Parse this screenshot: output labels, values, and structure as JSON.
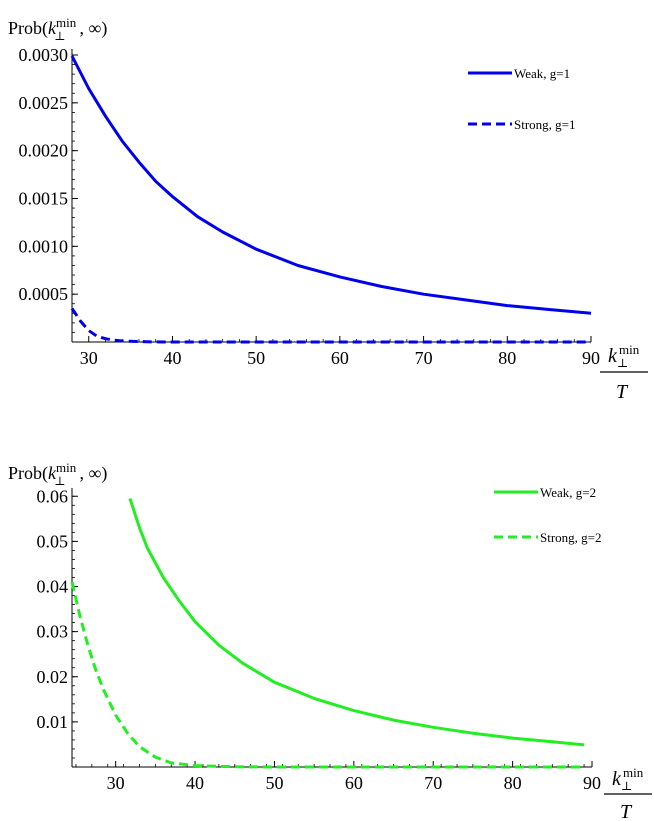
{
  "chart_data": [
    {
      "type": "line",
      "ylabel": {
        "prefix": "Prob(",
        "var": "k",
        "sub": "⊥",
        "sup": "min",
        "suffix": ", ∞)"
      },
      "xlabel": {
        "var": "k",
        "sub": "⊥",
        "sup": "min",
        "den": "T"
      },
      "xlim": [
        28,
        90
      ],
      "ylim": [
        0,
        0.003
      ],
      "x_ticks": [
        30,
        40,
        50,
        60,
        70,
        80,
        90
      ],
      "y_ticks": [
        0.0005,
        0.001,
        0.0015,
        0.002,
        0.0025,
        0.003
      ],
      "y_tick_labels": [
        "0.0005",
        "0.0010",
        "0.0015",
        "0.0020",
        "0.0025",
        "0.0030"
      ],
      "legend_position": "top-right",
      "series": [
        {
          "name": "Weak, g=1",
          "color": "#0000ee",
          "style": "solid",
          "x": [
            28,
            30,
            32,
            34,
            36,
            38,
            40,
            43,
            46,
            50,
            55,
            60,
            65,
            70,
            75,
            80,
            85,
            90
          ],
          "y": [
            0.00299,
            0.00265,
            0.00236,
            0.0021,
            0.00188,
            0.00168,
            0.00152,
            0.00131,
            0.00115,
            0.00097,
            0.0008,
            0.00068,
            0.00058,
            0.0005,
            0.00044,
            0.00038,
            0.00034,
            0.0003
          ]
        },
        {
          "name": "Strong, g=1",
          "color": "#0000ee",
          "style": "dashed",
          "x": [
            28,
            29,
            30,
            31,
            32,
            33,
            34,
            36,
            38,
            40,
            50,
            60,
            70,
            80,
            90
          ],
          "y": [
            0.00035,
            0.00022,
            0.00012,
            6e-05,
            3.5e-05,
            2e-05,
            1e-05,
            4e-06,
            1e-06,
            5e-07,
            1e-07,
            5e-08,
            2e-08,
            1e-08,
            1e-08
          ]
        }
      ]
    },
    {
      "type": "line",
      "ylabel": {
        "prefix": "Prob(",
        "var": "k",
        "sub": "⊥",
        "sup": "min",
        "suffix": ", ∞)"
      },
      "xlabel": {
        "var": "k",
        "sub": "⊥",
        "sup": "min",
        "den": "T"
      },
      "xlim": [
        24.5,
        90
      ],
      "ylim": [
        0,
        0.0605
      ],
      "x_ticks": [
        30,
        40,
        50,
        60,
        70,
        80,
        90
      ],
      "y_ticks": [
        0.01,
        0.02,
        0.03,
        0.04,
        0.05,
        0.06
      ],
      "y_tick_labels": [
        "0.01",
        "0.02",
        "0.03",
        "0.04",
        "0.05",
        "0.06"
      ],
      "legend_position": "top-right",
      "series": [
        {
          "name": "Weak, g=2",
          "color": "#22ee22",
          "style": "solid",
          "x": [
            31.8,
            33,
            34,
            36,
            38,
            40,
            43,
            46,
            50,
            55,
            60,
            65,
            70,
            75,
            80,
            85,
            89
          ],
          "y": [
            0.0595,
            0.053,
            0.0485,
            0.042,
            0.0368,
            0.0322,
            0.027,
            0.023,
            0.0188,
            0.0152,
            0.0125,
            0.0104,
            0.0088,
            0.0075,
            0.0064,
            0.0056,
            0.0049
          ]
        },
        {
          "name": "Strong, g=2",
          "color": "#22ee22",
          "style": "dashed",
          "x": [
            24.5,
            25.5,
            26.5,
            27.5,
            28.5,
            30,
            31.5,
            33,
            35,
            37,
            40,
            45,
            50,
            60,
            70,
            80,
            89
          ],
          "y": [
            0.041,
            0.0335,
            0.027,
            0.0215,
            0.017,
            0.0115,
            0.0075,
            0.0045,
            0.0022,
            0.0009,
            0.0003,
            5e-05,
            1e-05,
            1e-06,
            0.0,
            0.0,
            0.0
          ]
        }
      ]
    }
  ]
}
